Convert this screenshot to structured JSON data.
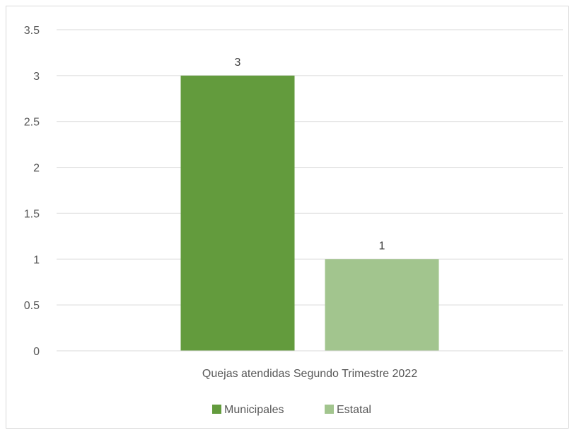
{
  "chart_data": {
    "type": "bar",
    "categories": [
      "Quejas atendidas Segundo Trimestre 2022"
    ],
    "series": [
      {
        "name": "Municipales",
        "values": [
          3
        ],
        "color": "#639b3d"
      },
      {
        "name": "Estatal",
        "values": [
          1
        ],
        "color": "#a2c58e"
      }
    ],
    "ylim": [
      0,
      3.5
    ],
    "yticks": [
      "0",
      "0.5",
      "1",
      "1.5",
      "2",
      "2.5",
      "3",
      "3.5"
    ],
    "data_labels": [
      "3",
      "1"
    ],
    "grid": true,
    "legend_position": "bottom"
  }
}
